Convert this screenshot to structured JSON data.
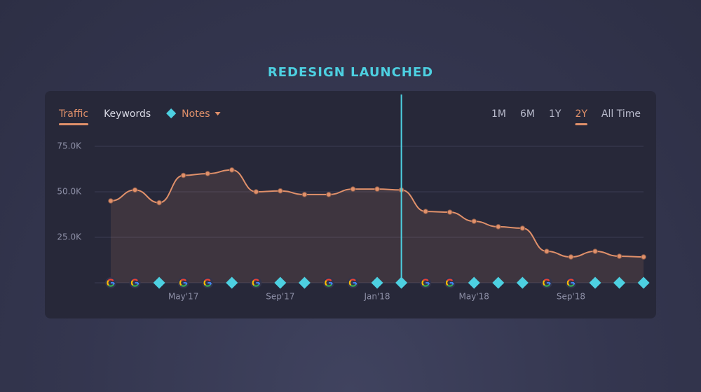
{
  "chart_data": {
    "type": "line",
    "annotation": {
      "text": "REDESIGN LAUNCHED",
      "at_index": 12,
      "color": "#4dd0e1"
    },
    "tabs": [
      "Traffic",
      "Keywords",
      "Notes"
    ],
    "active_tab": 0,
    "ranges": [
      "1M",
      "6M",
      "1Y",
      "2Y",
      "All Time"
    ],
    "active_range": 3,
    "categories": [
      null,
      null,
      null,
      "May'17",
      null,
      null,
      null,
      "Sep'17",
      null,
      null,
      null,
      "Jan'18",
      null,
      null,
      null,
      "May'18",
      null,
      null,
      null,
      "Sep'18",
      null,
      null,
      null
    ],
    "series": [
      {
        "name": "Traffic",
        "color": "#e0906a",
        "values": [
          45000,
          51000,
          44000,
          59000,
          60000,
          62000,
          50000,
          50500,
          48500,
          48500,
          51500,
          51500,
          51000,
          39200,
          38800,
          33800,
          30800,
          30000,
          17300,
          14200,
          17300,
          14600,
          14200
        ]
      }
    ],
    "markers": [
      "google",
      "google",
      "note",
      "google",
      "google",
      "note",
      "google",
      "note",
      "note",
      "google",
      "google",
      "note",
      "note",
      "google",
      "google",
      "note",
      "note",
      "note",
      "google",
      "google",
      "note",
      "note",
      "note"
    ],
    "marker_color": "#4dd0e1",
    "ylim": [
      0,
      75000
    ],
    "yticks": [
      {
        "value": 25000,
        "label": "25.0K"
      },
      {
        "value": 50000,
        "label": "50.0K"
      },
      {
        "value": 75000,
        "label": "75.0K"
      }
    ],
    "grid": true
  }
}
